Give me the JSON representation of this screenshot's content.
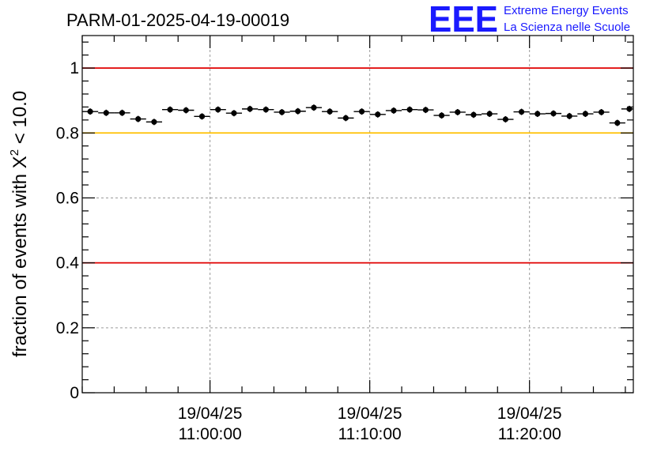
{
  "chart_data": {
    "type": "scatter",
    "title": "PARM-01-2025-04-19-00019",
    "ylabel_prefix": "fraction of events with ",
    "ylabel_symbol": "X",
    "ylabel_exponent": "2",
    "ylabel_suffix": " < 10.0",
    "xlabel": "",
    "ylim": [
      0,
      1.1
    ],
    "y_ticks": [
      0,
      0.2,
      0.4,
      0.6,
      0.8,
      1
    ],
    "y_tick_labels": [
      "0",
      "0.2",
      "0.4",
      "0.6",
      "0.8",
      "1"
    ],
    "x_range_minutes": [
      0,
      34.5
    ],
    "x_ticks_minutes": [
      8,
      18,
      28
    ],
    "x_tick_labels": [
      {
        "date": "19/04/25",
        "time": "11:00:00"
      },
      {
        "date": "19/04/25",
        "time": "11:10:00"
      },
      {
        "date": "19/04/25",
        "time": "11:20:00"
      }
    ],
    "reference_lines": [
      {
        "y": 1.0,
        "color": "#e00000"
      },
      {
        "y": 0.8,
        "color": "#ffc000"
      },
      {
        "y": 0.4,
        "color": "#e00000"
      }
    ],
    "grid": true,
    "series": [
      {
        "name": "fraction",
        "color": "#000000",
        "bin_width_minutes": 1,
        "x": [
          0.5,
          1.5,
          2.5,
          3.5,
          4.5,
          5.5,
          6.5,
          7.5,
          8.5,
          9.5,
          10.5,
          11.5,
          12.5,
          13.5,
          14.5,
          15.5,
          16.5,
          17.5,
          18.5,
          19.5,
          20.5,
          21.5,
          22.5,
          23.5,
          24.5,
          25.5,
          26.5,
          27.5,
          28.5,
          29.5,
          30.5,
          31.5,
          32.5,
          33.5,
          34.25
        ],
        "y": [
          0.866,
          0.862,
          0.862,
          0.843,
          0.834,
          0.872,
          0.87,
          0.851,
          0.872,
          0.861,
          0.874,
          0.872,
          0.864,
          0.867,
          0.878,
          0.866,
          0.846,
          0.866,
          0.857,
          0.869,
          0.872,
          0.871,
          0.854,
          0.864,
          0.856,
          0.859,
          0.842,
          0.865,
          0.859,
          0.86,
          0.852,
          0.859,
          0.864,
          0.831,
          0.874
        ]
      }
    ]
  },
  "logo": {
    "letters": "EEE",
    "line1": "Extreme Energy Events",
    "line2": "La Scienza nelle Scuole"
  }
}
